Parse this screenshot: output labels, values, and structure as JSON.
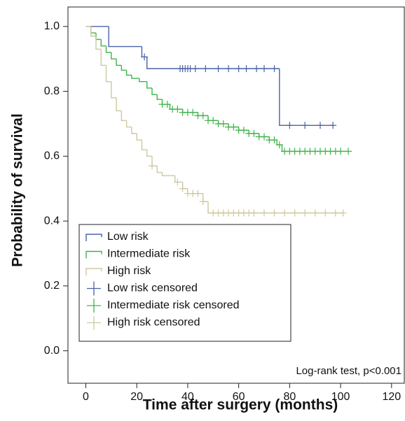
{
  "chart_data": {
    "type": "kaplan-meier",
    "xlabel": "Time after surgery (months)",
    "ylabel": "Probability of survival",
    "annotation": "Log-rank test, p<0.001",
    "xlim": [
      -7,
      125
    ],
    "ylim": [
      -0.1,
      1.06
    ],
    "xticks": [
      0,
      20,
      40,
      60,
      80,
      100,
      120
    ],
    "yticks": [
      {
        "value": 0,
        "label": "0.0"
      },
      {
        "value": 0.2,
        "label": "0.2"
      },
      {
        "value": 0.4,
        "label": "0.4"
      },
      {
        "value": 0.6,
        "label": "0.6"
      },
      {
        "value": 0.8,
        "label": "0.8"
      },
      {
        "value": 1,
        "label": "1.0"
      }
    ],
    "legend": "lower left",
    "series": [
      {
        "name": "Low risk",
        "kind": "step",
        "color": "#4a62a8",
        "x": [
          0,
          9,
          22,
          24,
          76,
          97
        ],
        "values": [
          1.0,
          0.938,
          0.906,
          0.87,
          0.695,
          0.695
        ]
      },
      {
        "name": "Intermediate risk",
        "kind": "step",
        "color": "#3fb34a",
        "x": [
          0,
          2,
          4,
          6,
          8,
          10,
          12,
          14,
          16,
          18,
          21,
          24,
          26,
          28,
          30,
          33,
          38,
          44,
          48,
          52,
          56,
          60,
          64,
          68,
          72,
          75,
          77,
          103
        ],
        "values": [
          1.0,
          0.98,
          0.96,
          0.94,
          0.92,
          0.9,
          0.88,
          0.865,
          0.85,
          0.84,
          0.83,
          0.81,
          0.79,
          0.775,
          0.76,
          0.745,
          0.735,
          0.725,
          0.71,
          0.7,
          0.69,
          0.68,
          0.67,
          0.66,
          0.65,
          0.635,
          0.615,
          0.615
        ]
      },
      {
        "name": "High risk",
        "kind": "step",
        "color": "#cdc8a0",
        "x": [
          0,
          2,
          4,
          6,
          8,
          10,
          12,
          14,
          16,
          18,
          20,
          22,
          24,
          26,
          28,
          30,
          35,
          38,
          40,
          46,
          48,
          101
        ],
        "values": [
          1.0,
          0.97,
          0.93,
          0.88,
          0.83,
          0.78,
          0.74,
          0.71,
          0.69,
          0.67,
          0.65,
          0.62,
          0.6,
          0.57,
          0.55,
          0.54,
          0.52,
          0.5,
          0.485,
          0.46,
          0.425,
          0.425
        ]
      },
      {
        "name": "Low risk censored",
        "kind": "censor",
        "color": "#4a62a8",
        "x": [
          23,
          37,
          38,
          39,
          40,
          41,
          43,
          47,
          52,
          56,
          60,
          63,
          67,
          70,
          74,
          80,
          86,
          92,
          97
        ],
        "values": [
          0.906,
          0.87,
          0.87,
          0.87,
          0.87,
          0.87,
          0.87,
          0.87,
          0.87,
          0.87,
          0.87,
          0.87,
          0.87,
          0.87,
          0.87,
          0.695,
          0.695,
          0.695,
          0.695
        ]
      },
      {
        "name": "Intermediate risk censored",
        "kind": "censor",
        "color": "#3fb34a",
        "x": [
          30,
          32,
          34,
          36,
          38,
          40,
          42,
          44,
          46,
          48,
          50,
          52,
          54,
          56,
          58,
          60,
          62,
          64,
          66,
          68,
          70,
          72,
          74,
          76,
          78,
          80,
          82,
          84,
          86,
          88,
          90,
          92,
          94,
          96,
          98,
          100,
          103
        ],
        "values": [
          0.76,
          0.76,
          0.745,
          0.745,
          0.735,
          0.735,
          0.735,
          0.725,
          0.725,
          0.71,
          0.71,
          0.7,
          0.7,
          0.69,
          0.69,
          0.68,
          0.68,
          0.67,
          0.67,
          0.66,
          0.66,
          0.65,
          0.65,
          0.635,
          0.615,
          0.615,
          0.615,
          0.615,
          0.615,
          0.615,
          0.615,
          0.615,
          0.615,
          0.615,
          0.615,
          0.615,
          0.615
        ]
      },
      {
        "name": "High risk censored",
        "kind": "censor",
        "color": "#cdc8a0",
        "x": [
          26,
          36,
          38,
          40,
          42,
          44,
          46,
          50,
          52,
          54,
          56,
          58,
          60,
          62,
          64,
          66,
          70,
          74,
          78,
          82,
          86,
          90,
          94,
          98,
          101
        ],
        "values": [
          0.57,
          0.52,
          0.5,
          0.485,
          0.485,
          0.485,
          0.46,
          0.425,
          0.425,
          0.425,
          0.425,
          0.425,
          0.425,
          0.425,
          0.425,
          0.425,
          0.425,
          0.425,
          0.425,
          0.425,
          0.425,
          0.425,
          0.425,
          0.425,
          0.425
        ]
      }
    ]
  }
}
